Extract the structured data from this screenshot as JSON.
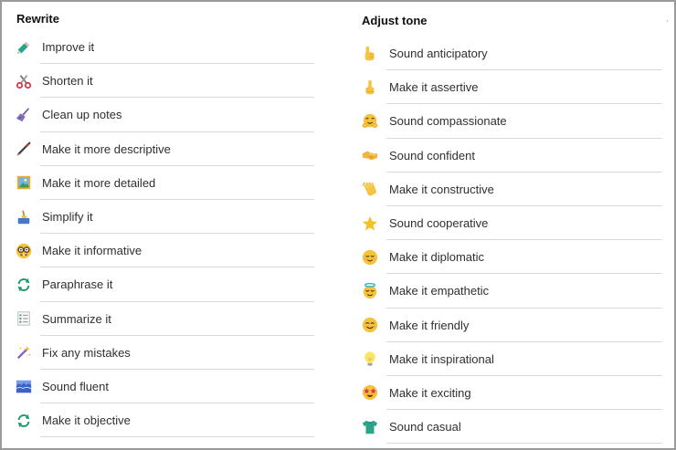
{
  "rewrite": {
    "heading": "Rewrite",
    "items": [
      {
        "label": "Improve it",
        "icon": "pencil-icon"
      },
      {
        "label": "Shorten it",
        "icon": "scissors-icon"
      },
      {
        "label": "Clean up notes",
        "icon": "broom-icon"
      },
      {
        "label": "Make it more descriptive",
        "icon": "pen-icon"
      },
      {
        "label": "Make it more detailed",
        "icon": "framed-picture-icon"
      },
      {
        "label": "Simplify it",
        "icon": "broom-bucket-icon"
      },
      {
        "label": "Make it informative",
        "icon": "nerd-face-icon"
      },
      {
        "label": "Paraphrase it",
        "icon": "cycle-arrows-icon"
      },
      {
        "label": "Summarize it",
        "icon": "bullet-list-icon"
      },
      {
        "label": "Fix any mistakes",
        "icon": "magic-wand-icon"
      },
      {
        "label": "Sound fluent",
        "icon": "water-wave-icon"
      },
      {
        "label": "Make it objective",
        "icon": "cycle-arrows-icon"
      }
    ]
  },
  "tone": {
    "heading": "Adjust tone",
    "items": [
      {
        "label": "Sound anticipatory",
        "icon": "pointing-hand-icon"
      },
      {
        "label": "Make it assertive",
        "icon": "index-up-icon"
      },
      {
        "label": "Sound compassionate",
        "icon": "hugging-face-icon"
      },
      {
        "label": "Sound confident",
        "icon": "handshake-icon"
      },
      {
        "label": "Make it constructive",
        "icon": "waving-hand-icon"
      },
      {
        "label": "Sound cooperative",
        "icon": "star-icon"
      },
      {
        "label": "Make it diplomatic",
        "icon": "relieved-face-icon"
      },
      {
        "label": "Make it empathetic",
        "icon": "halo-face-icon"
      },
      {
        "label": "Make it friendly",
        "icon": "smile-face-icon"
      },
      {
        "label": "Make it inspirational",
        "icon": "lightbulb-icon"
      },
      {
        "label": "Make it exciting",
        "icon": "star-eyes-face-icon"
      },
      {
        "label": "Sound casual",
        "icon": "tshirt-icon"
      }
    ]
  }
}
